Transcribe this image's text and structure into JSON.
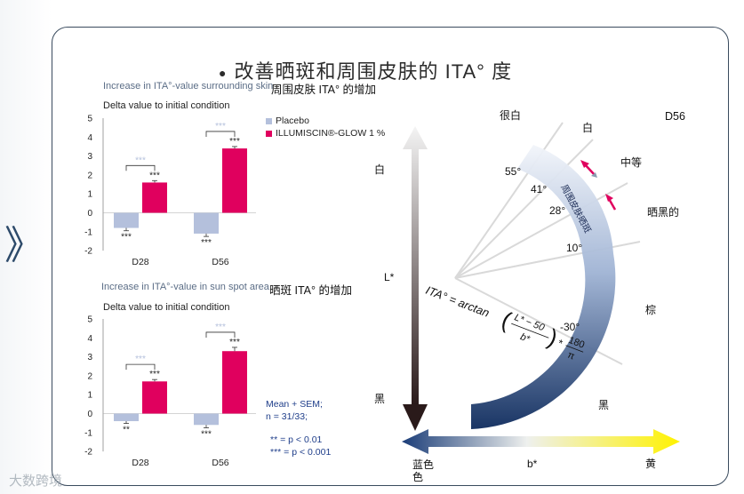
{
  "title": "改善晒斑和周围皮肤的 ITA° 度",
  "chart_data": [
    {
      "type": "bar",
      "caption": "Increase in ITA°-value surrounding skin",
      "caption_cn": "周围皮肤 ITA° 的增加",
      "subtitle": "Delta value to initial condition",
      "categories": [
        "D28",
        "D56"
      ],
      "ylim": [
        -2,
        5
      ],
      "yticks": [
        "5",
        "4",
        "3",
        "2",
        "1",
        "0",
        "-1",
        "-2"
      ],
      "series": [
        {
          "name": "Placebo",
          "color": "#b4c0dc",
          "values": [
            -0.8,
            -1.1
          ],
          "errors": [
            0.15,
            0.15
          ],
          "sig": [
            "***",
            "***"
          ]
        },
        {
          "name": "ILLUMISCIN®-GLOW 1 %",
          "color": "#e0005e",
          "values": [
            1.6,
            3.4
          ],
          "errors": [
            0.1,
            0.1
          ],
          "sig": [
            "***",
            "***"
          ]
        }
      ],
      "bracket_sig": [
        "***",
        "***"
      ]
    },
    {
      "type": "bar",
      "caption": "Increase in ITA°-value in sun spot area",
      "caption_cn": "晒斑 ITA° 的增加",
      "subtitle": "Delta value to initial condition",
      "categories": [
        "D28",
        "D56"
      ],
      "ylim": [
        -2,
        5
      ],
      "yticks": [
        "5",
        "4",
        "3",
        "2",
        "1",
        "0",
        "-1",
        "-2"
      ],
      "series": [
        {
          "name": "Placebo",
          "color": "#b4c0dc",
          "values": [
            -0.4,
            -0.6
          ],
          "errors": [
            0.12,
            0.15
          ],
          "sig": [
            "**",
            "***"
          ]
        },
        {
          "name": "ILLUMISCIN®-GLOW 1 %",
          "color": "#e0005e",
          "values": [
            1.7,
            3.3
          ],
          "errors": [
            0.1,
            0.2
          ],
          "sig": [
            "***",
            "***"
          ]
        }
      ],
      "bracket_sig": [
        "***",
        "***"
      ]
    }
  ],
  "stats": {
    "line1": "Mean + SEM;",
    "line2": "n = 31/33;",
    "line3": "** = p < 0.01",
    "line4": "*** = p < 0.001"
  },
  "ita_diagram": {
    "formula_label": "ITA° = arctan((L* − 50) / b*) × 180/π",
    "formula_main": "ITA° = arctan",
    "formula_num": "L* − 50",
    "formula_den": "b*",
    "formula_mult": "*",
    "formula_k_num": "180",
    "formula_k_den": "π",
    "arc_label": "周围皮肤晒斑",
    "axis_l": "L*",
    "axis_b": "b*",
    "white": "白",
    "black": "黑",
    "blue_l1": "蓝色",
    "blue_l2": "色",
    "yellow": "黄",
    "angles": [
      {
        "deg": 55,
        "label": "55°",
        "name": "很白"
      },
      {
        "deg": 41,
        "label": "41°",
        "name": "白"
      },
      {
        "deg": 28,
        "label": "28°",
        "name": "中等"
      },
      {
        "deg": 10,
        "label": "10°",
        "name": "晒黑的"
      },
      {
        "deg": -30,
        "label": "-30°",
        "name": "棕"
      }
    ],
    "bottom_black": "黑",
    "code": "D56"
  },
  "nav_glyph": "》",
  "watermark": "大数跨境"
}
